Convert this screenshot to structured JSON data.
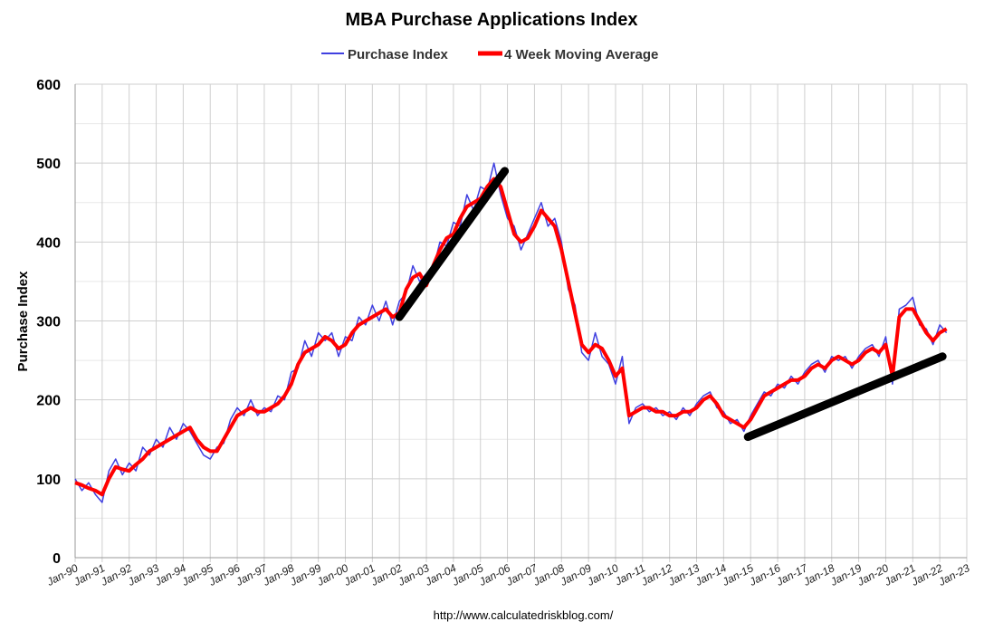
{
  "chart_data": {
    "type": "line",
    "title": "MBA Purchase Applications Index",
    "ylabel": "Purchase Index",
    "xlabel": "",
    "source": "http://www.calculatedriskblog.com/",
    "ylim": [
      0,
      600
    ],
    "yticks": [
      0,
      100,
      200,
      300,
      400,
      500,
      600
    ],
    "xlim": [
      1990,
      2023
    ],
    "xticks": [
      "Jan-90",
      "Jan-91",
      "Jan-92",
      "Jan-93",
      "Jan-94",
      "Jan-95",
      "Jan-96",
      "Jan-97",
      "Jan-98",
      "Jan-99",
      "Jan-00",
      "Jan-01",
      "Jan-02",
      "Jan-03",
      "Jan-04",
      "Jan-05",
      "Jan-06",
      "Jan-07",
      "Jan-08",
      "Jan-09",
      "Jan-10",
      "Jan-11",
      "Jan-12",
      "Jan-13",
      "Jan-14",
      "Jan-15",
      "Jan-16",
      "Jan-17",
      "Jan-18",
      "Jan-19",
      "Jan-20",
      "Jan-21",
      "Jan-22",
      "Jan-23"
    ],
    "grid": true,
    "legend_position": "top-center",
    "x_start": 1990,
    "x_step": 0.25,
    "series": [
      {
        "name": "Purchase Index",
        "color": "#4040e0",
        "values": [
          100,
          85,
          95,
          80,
          70,
          110,
          125,
          105,
          120,
          110,
          140,
          130,
          150,
          140,
          165,
          150,
          170,
          160,
          145,
          130,
          125,
          140,
          145,
          175,
          190,
          180,
          200,
          180,
          190,
          185,
          205,
          200,
          235,
          240,
          275,
          255,
          285,
          275,
          285,
          255,
          280,
          275,
          305,
          295,
          320,
          300,
          325,
          295,
          325,
          335,
          370,
          350,
          360,
          365,
          400,
          395,
          425,
          420,
          460,
          440,
          470,
          465,
          500,
          460,
          430,
          420,
          390,
          410,
          430,
          450,
          420,
          430,
          400,
          340,
          320,
          260,
          250,
          285,
          255,
          245,
          220,
          255,
          170,
          190,
          195,
          185,
          190,
          180,
          185,
          175,
          190,
          180,
          195,
          205,
          210,
          190,
          185,
          170,
          175,
          160,
          180,
          195,
          210,
          205,
          220,
          215,
          230,
          220,
          235,
          245,
          250,
          235,
          255,
          250,
          255,
          240,
          255,
          265,
          270,
          255,
          280,
          220,
          315,
          320,
          330,
          295,
          290,
          270,
          295,
          285
        ]
      },
      {
        "name": "4 Week Moving Average",
        "color": "#ff0000",
        "values": [
          95,
          92,
          88,
          85,
          80,
          100,
          115,
          112,
          110,
          118,
          125,
          135,
          140,
          145,
          150,
          155,
          160,
          165,
          150,
          140,
          135,
          135,
          150,
          165,
          180,
          185,
          190,
          185,
          185,
          190,
          195,
          205,
          220,
          245,
          260,
          265,
          270,
          280,
          275,
          265,
          270,
          285,
          295,
          300,
          305,
          310,
          315,
          305,
          310,
          340,
          355,
          360,
          345,
          370,
          390,
          405,
          410,
          430,
          445,
          450,
          455,
          470,
          480,
          470,
          440,
          410,
          400,
          405,
          420,
          440,
          430,
          420,
          390,
          350,
          310,
          270,
          260,
          270,
          265,
          250,
          230,
          240,
          180,
          185,
          190,
          190,
          185,
          185,
          180,
          180,
          185,
          185,
          190,
          200,
          205,
          195,
          180,
          175,
          170,
          165,
          175,
          190,
          205,
          210,
          215,
          220,
          225,
          225,
          230,
          240,
          245,
          240,
          250,
          255,
          250,
          245,
          250,
          260,
          265,
          260,
          270,
          230,
          305,
          315,
          315,
          300,
          285,
          275,
          285,
          290
        ]
      }
    ],
    "trend_lines": [
      {
        "x": [
          2002.0,
          2005.9
        ],
        "y": [
          305,
          490
        ],
        "color": "#000000"
      },
      {
        "x": [
          2014.9,
          2022.1
        ],
        "y": [
          153,
          255
        ],
        "color": "#000000"
      }
    ]
  }
}
